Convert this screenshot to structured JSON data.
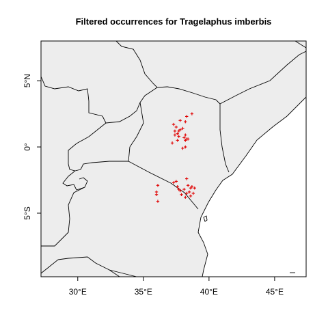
{
  "map": {
    "title": "Filtered occurrences for Tragelaphus imberbis",
    "x_axis": {
      "ticks": [
        {
          "value": 30,
          "label": "30°E"
        },
        {
          "value": 35,
          "label": "35°E"
        },
        {
          "value": 40,
          "label": "40°E"
        },
        {
          "value": 45,
          "label": "45°E"
        }
      ]
    },
    "y_axis": {
      "ticks": [
        {
          "value": 5,
          "label": "5°N"
        },
        {
          "value": 0,
          "label": "0°"
        },
        {
          "value": -5,
          "label": "5°S"
        }
      ]
    },
    "xlim": [
      27.2,
      47.4
    ],
    "ylim": [
      -9.8,
      8.0
    ],
    "colors": {
      "land": "#ededed",
      "ocean": "#ffffff",
      "borders": "#000000",
      "points": "#e00000"
    },
    "marker": "plus"
  },
  "chart_data": {
    "type": "scatter",
    "title": "Filtered occurrences for Tragelaphus imberbis",
    "xlim": [
      27.2,
      47.4
    ],
    "ylim": [
      -9.8,
      8.0
    ],
    "grid": false,
    "series": [
      {
        "points": [
          [
            38.7,
            2.5
          ],
          [
            38.3,
            2.3
          ],
          [
            37.8,
            2.0
          ],
          [
            38.2,
            1.9
          ],
          [
            37.3,
            1.7
          ],
          [
            37.5,
            1.5
          ],
          [
            38.0,
            1.4
          ],
          [
            37.8,
            1.3
          ],
          [
            37.4,
            1.2
          ],
          [
            37.7,
            1.2
          ],
          [
            37.6,
            1.0
          ],
          [
            38.2,
            0.9
          ],
          [
            37.4,
            0.9
          ],
          [
            37.7,
            0.8
          ],
          [
            38.1,
            0.7
          ],
          [
            38.3,
            0.6
          ],
          [
            38.4,
            0.6
          ],
          [
            38.2,
            0.5
          ],
          [
            37.6,
            0.5
          ],
          [
            37.2,
            0.3
          ],
          [
            38.2,
            0.0
          ],
          [
            38.0,
            -0.1
          ],
          [
            38.3,
            -2.4
          ],
          [
            37.5,
            -2.6
          ],
          [
            37.3,
            -2.7
          ],
          [
            38.4,
            -2.9
          ],
          [
            36.1,
            -2.9
          ],
          [
            38.7,
            -3.0
          ],
          [
            37.6,
            -3.0
          ],
          [
            38.9,
            -3.1
          ],
          [
            38.6,
            -3.1
          ],
          [
            38.1,
            -3.2
          ],
          [
            37.8,
            -3.3
          ],
          [
            38.5,
            -3.4
          ],
          [
            36.0,
            -3.4
          ],
          [
            38.3,
            -3.5
          ],
          [
            38.8,
            -3.5
          ],
          [
            37.9,
            -3.6
          ],
          [
            36.0,
            -3.6
          ],
          [
            38.6,
            -3.7
          ],
          [
            38.2,
            -3.8
          ],
          [
            36.1,
            -4.1
          ],
          [
            37.7,
            -3.2
          ]
        ]
      }
    ]
  }
}
